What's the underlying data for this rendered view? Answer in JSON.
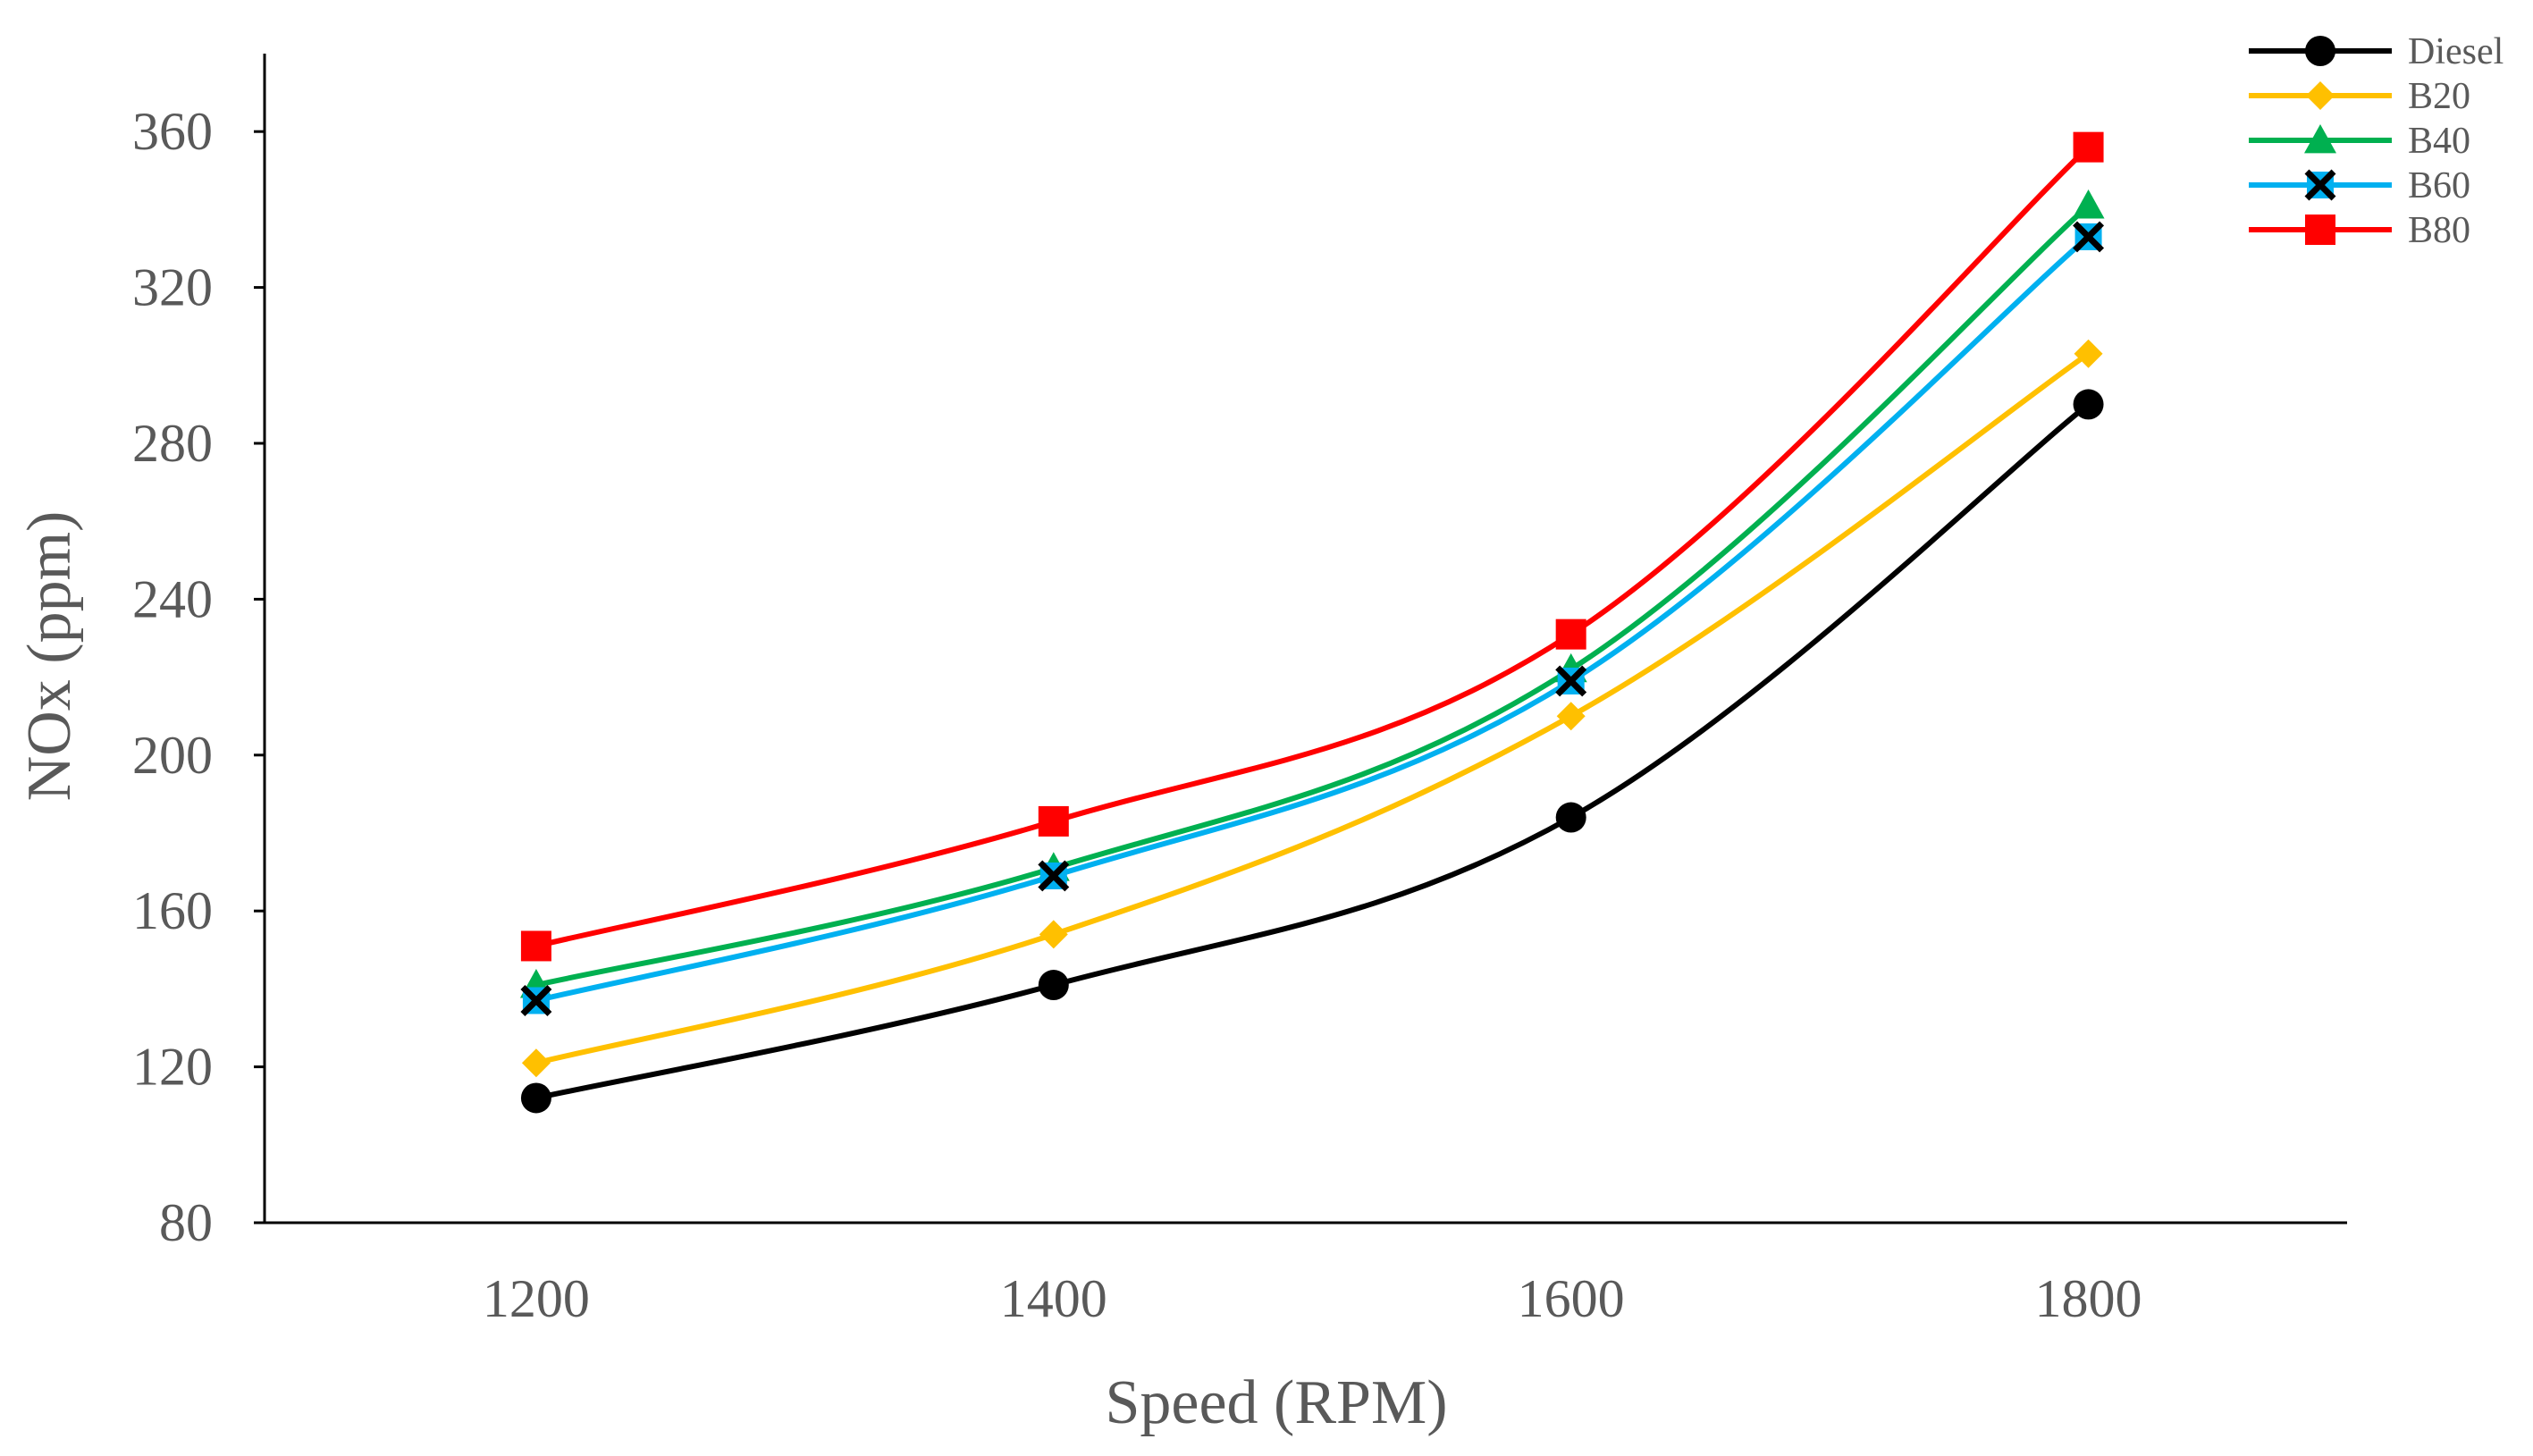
{
  "chart_data": {
    "type": "line",
    "title": "",
    "xlabel": "Speed (RPM)",
    "ylabel": "NOx (ppm)",
    "x": [
      1200,
      1400,
      1600,
      1800
    ],
    "xlim": [
      1095,
      1900
    ],
    "ylim": [
      80,
      380
    ],
    "yticks": [
      80,
      120,
      160,
      200,
      240,
      280,
      320,
      360
    ],
    "grid": false,
    "legend_position": "top-right",
    "series": [
      {
        "name": "Diesel",
        "values": [
          112,
          141,
          184,
          290
        ],
        "color": "#000000",
        "marker": "circle"
      },
      {
        "name": "B20",
        "values": [
          121,
          154,
          210,
          303
        ],
        "color": "#FFC000",
        "marker": "diamond"
      },
      {
        "name": "B40",
        "values": [
          141,
          171,
          222,
          341
        ],
        "color": "#00B050",
        "marker": "triangle"
      },
      {
        "name": "B60",
        "values": [
          137,
          169,
          219,
          333
        ],
        "color": "#00B0F0",
        "marker": "x-square"
      },
      {
        "name": "B80",
        "values": [
          151,
          183,
          231,
          356
        ],
        "color": "#FF0000",
        "marker": "square"
      }
    ]
  }
}
